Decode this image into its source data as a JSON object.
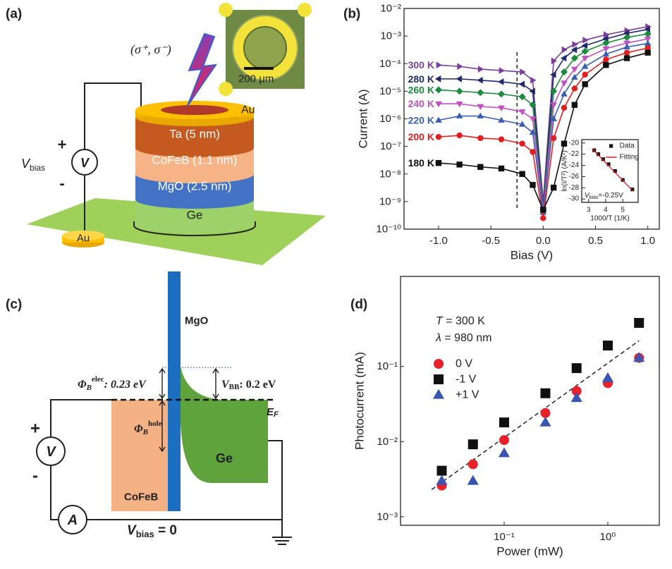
{
  "panels": {
    "a": "(a)",
    "b": "(b)",
    "c": "(c)",
    "d": "(d)"
  },
  "diagram_a": {
    "layers": [
      "Au",
      "Ta (5 nm)",
      "CoFeB (1.1 nm)",
      "MgO (2.5 nm)",
      "Ge"
    ],
    "pad": "Au",
    "plus": "+",
    "minus": "-",
    "meter": "V",
    "bias": {
      "symbol": "V",
      "sub": "bias"
    },
    "light": "(σ⁺, σ⁻)",
    "scale_bar": "200 μm"
  },
  "diagram_c": {
    "mgo": "MgO",
    "cofeb": "CoFeB",
    "ge": "Ge",
    "ef": {
      "symbol": "E",
      "sub": "F"
    },
    "phi_elec": {
      "symbol": "Φ",
      "sub": "B",
      "sup": "elec",
      "text": ": 0.23 eV"
    },
    "phi_hole": {
      "symbol": "Φ",
      "sub": "B",
      "sup": "hole"
    },
    "vbb": {
      "symbol": "V",
      "sub": "BB",
      "text": ": 0.2 eV"
    },
    "plus": "+",
    "minus": "-",
    "meter": "V",
    "ammeter": "A",
    "bias": {
      "symbol": "V",
      "sub": "bias",
      "text": " = 0"
    }
  },
  "chart_data": [
    {
      "type": "line",
      "xlabel": "Bias (V)",
      "ylabel": "Current (A)",
      "legend": "inline",
      "yscale": "log",
      "x": [
        -1.0,
        -0.8,
        -0.6,
        -0.4,
        -0.2,
        -0.1,
        0,
        0.1,
        0.2,
        0.3,
        0.4,
        0.6,
        0.8,
        1.0
      ],
      "xlim": [
        -1.33,
        1.11
      ],
      "xticks": [
        {
          "value": -1,
          "label": "-1.0"
        },
        -0.5,
        {
          "value": 0,
          "label": "0.0"
        },
        0.5,
        {
          "value": 1,
          "label": "1.0"
        }
      ],
      "ylim": [
        1e-10,
        0.01
      ],
      "yticks": [
        {
          "value": 1e-10,
          "label": "10⁻¹⁰"
        },
        {
          "value": 1e-09,
          "label": "10⁻⁹"
        },
        {
          "value": 1e-08,
          "label": "10⁻⁸"
        },
        {
          "value": 1e-07,
          "label": "10⁻⁷"
        },
        {
          "value": 1e-06,
          "label": "10⁻⁶"
        },
        {
          "value": 1e-05,
          "label": "10⁻⁵"
        },
        {
          "value": 0.0001,
          "label": "10⁻⁴"
        },
        {
          "value": 0.001,
          "label": "10⁻³"
        },
        {
          "value": 0.01,
          "label": "10⁻²"
        }
      ],
      "vline": -0.25,
      "series": [
        {
          "name": "300 K",
          "color": "#7a3f9a",
          "marker": "triangle-right",
          "values": [
            8.9e-05,
            7.9e-05,
            6.3e-05,
            5.6e-05,
            5e-05,
            2.5e-05,
            1e-09,
            0.000126,
            0.00032,
            0.0005,
            0.00071,
            0.00112,
            0.00158,
            0.00219
          ]
        },
        {
          "name": "280 K",
          "color": "#1f2a6e",
          "marker": "triangle-left",
          "values": [
            2.8e-05,
            2.8e-05,
            2.5e-05,
            2.2e-05,
            1.8e-05,
            1e-05,
            6.3e-10,
            4e-05,
            0.000158,
            0.00032,
            0.00045,
            0.00079,
            0.00126,
            0.00174
          ]
        },
        {
          "name": "260 K",
          "color": "#1a8a3c",
          "marker": "diamond",
          "values": [
            1.12e-05,
            1e-05,
            8.9e-06,
            7.9e-06,
            6.3e-06,
            3.2e-06,
            5e-10,
            1e-05,
            5e-05,
            0.000158,
            0.00028,
            0.00056,
            0.00089,
            0.0012
          ]
        },
        {
          "name": "240 K",
          "color": "#c050c0",
          "marker": "triangle-down",
          "values": [
            3.5e-06,
            3.5e-06,
            2.8e-06,
            2.5e-06,
            1.8e-06,
            1e-06,
            5e-10,
            3.2e-06,
            2e-05,
            6.3e-05,
            0.000158,
            0.00035,
            0.00056,
            0.00079
          ]
        },
        {
          "name": "220 K",
          "color": "#3a5fb0",
          "marker": "triangle-up",
          "values": [
            8.9e-07,
            1.26e-06,
            1.26e-06,
            8.9e-07,
            6.3e-07,
            3.2e-07,
            4e-10,
            1e-06,
            7.9e-06,
            3.2e-05,
            7.9e-05,
            0.00022,
            0.0004,
            0.00054
          ]
        },
        {
          "name": "200 K",
          "color": "#e02020",
          "marker": "circle",
          "values": [
            2.2e-07,
            2.5e-07,
            2e-07,
            1.8e-07,
            1.26e-07,
            6.3e-08,
            2.5e-10,
            2e-07,
            2.5e-06,
            1.26e-05,
            4e-05,
            0.000141,
            0.00025,
            0.00037
          ]
        },
        {
          "name": "180 K",
          "color": "#111111",
          "marker": "square",
          "values": [
            2.5e-08,
            2.2e-08,
            1.8e-08,
            1.58e-08,
            1e-08,
            4e-09,
            5e-10,
            3.2e-09,
            1.26e-07,
            3.2e-06,
            1.8e-05,
            8.9e-05,
            0.000158,
            0.00025
          ]
        }
      ]
    },
    {
      "type": "scatter",
      "xlabel": "1000/T (1/K)",
      "ylabel": "ln(I/T²) (A/K²)",
      "legend": "upper right",
      "x": [
        3.33,
        3.57,
        3.85,
        4.17,
        4.55,
        5.0,
        5.56
      ],
      "xlim": [
        2.6,
        5.9
      ],
      "xticks": [
        3,
        4,
        5
      ],
      "ylim": [
        -30.6,
        -19.4
      ],
      "yticks": [
        -20,
        -22,
        -24,
        -26,
        -28,
        -30
      ],
      "annotation": {
        "symbol": "V",
        "sub": "bias",
        "text": "=-0.25V"
      },
      "series": [
        {
          "name": "Data",
          "color": "#111111",
          "marker": "square",
          "values": [
            -21.3,
            -22.0,
            -22.9,
            -23.8,
            -25.0,
            -26.6,
            -28.3
          ]
        },
        {
          "name": "Fitting",
          "color": "#e02020",
          "marker": "line",
          "x": [
            3.2,
            5.6
          ],
          "values": [
            -21.0,
            -28.6
          ]
        }
      ]
    },
    {
      "type": "scatter",
      "xlabel": "Power (mW)",
      "ylabel": "Photocurrent (mA)",
      "legend": "upper left",
      "xscale": "log",
      "yscale": "log",
      "x": [
        0.025,
        0.05,
        0.1,
        0.25,
        0.5,
        1,
        2
      ],
      "xlim": [
        0.01,
        3.14
      ],
      "xticks": [
        {
          "value": 0.1,
          "label": "10⁻¹"
        },
        {
          "value": 1,
          "label": "10⁰"
        }
      ],
      "ylim": [
        0.00077,
        1.58
      ],
      "yticks": [
        {
          "value": 0.001,
          "label": "10⁻³"
        },
        {
          "value": 0.01,
          "label": "10⁻²"
        },
        {
          "value": 0.1,
          "label": "10⁻¹"
        }
      ],
      "annotations": [
        {
          "symbol": "T",
          "text": " = 300 K"
        },
        {
          "symbol": "λ",
          "text": " = 980 nm"
        }
      ],
      "fit": {
        "x": [
          0.02,
          2
        ],
        "values": [
          0.0023,
          0.22
        ]
      },
      "series": [
        {
          "name": "0 V",
          "color": "#e8212b",
          "marker": "circle",
          "values": [
            0.0026,
            0.005,
            0.0105,
            0.024,
            0.047,
            0.06,
            0.13
          ]
        },
        {
          "name": "-1 V",
          "color": "#111111",
          "marker": "square",
          "values": [
            0.0041,
            0.0092,
            0.018,
            0.044,
            0.095,
            0.19,
            0.38
          ]
        },
        {
          "name": "+1 V",
          "color": "#3a55b0",
          "marker": "triangle-up",
          "values": [
            0.003,
            0.003,
            0.007,
            0.018,
            0.038,
            0.07,
            0.13
          ]
        }
      ]
    }
  ]
}
